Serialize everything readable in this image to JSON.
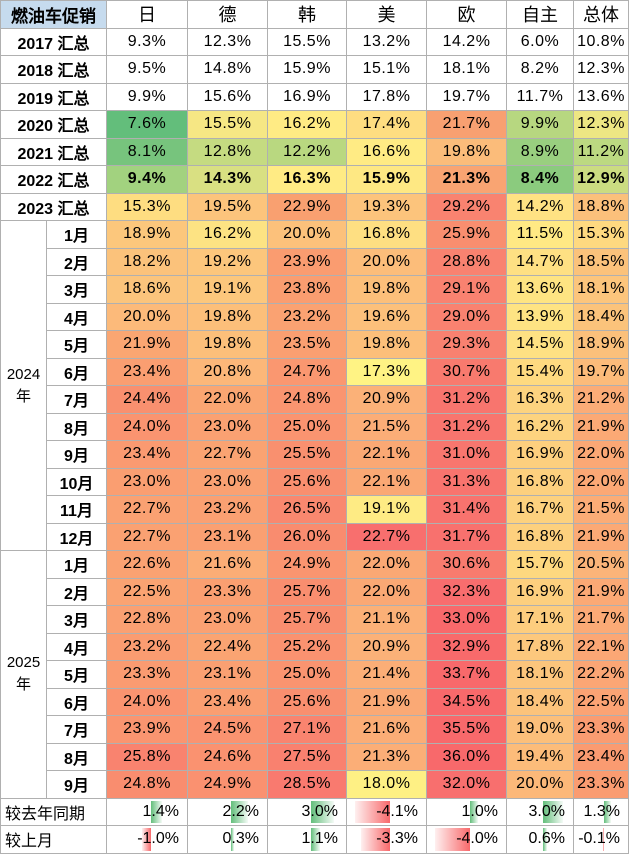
{
  "header": {
    "corner": "燃油车促销",
    "columns": [
      "日",
      "德",
      "韩",
      "美",
      "欧",
      "自主",
      "总体"
    ]
  },
  "annual_rows": [
    {
      "label": "2017 汇总",
      "values": [
        "9.3%",
        "12.3%",
        "15.5%",
        "13.2%",
        "14.2%",
        "6.0%",
        "10.8%"
      ],
      "colors": [
        "#ffffff",
        "#ffffff",
        "#ffffff",
        "#ffffff",
        "#ffffff",
        "#ffffff",
        "#ffffff"
      ],
      "bold": false
    },
    {
      "label": "2018 汇总",
      "values": [
        "9.5%",
        "14.8%",
        "15.9%",
        "15.1%",
        "18.1%",
        "8.2%",
        "12.3%"
      ],
      "colors": [
        "#ffffff",
        "#ffffff",
        "#ffffff",
        "#ffffff",
        "#ffffff",
        "#ffffff",
        "#ffffff"
      ],
      "bold": false
    },
    {
      "label": "2019 汇总",
      "values": [
        "9.9%",
        "15.6%",
        "16.9%",
        "17.8%",
        "19.7%",
        "11.7%",
        "13.6%"
      ],
      "colors": [
        "#ffffff",
        "#ffffff",
        "#ffffff",
        "#ffffff",
        "#ffffff",
        "#ffffff",
        "#ffffff"
      ],
      "bold": false
    },
    {
      "label": "2020 汇总",
      "values": [
        "7.6%",
        "15.5%",
        "16.2%",
        "17.4%",
        "21.7%",
        "9.9%",
        "12.3%"
      ],
      "colors": [
        "#63be7b",
        "#f6e784",
        "#ffeb84",
        "#fedd81",
        "#f8a071",
        "#b7d780",
        "#ede683"
      ],
      "bold": false
    },
    {
      "label": "2021 汇总",
      "values": [
        "8.1%",
        "12.8%",
        "12.2%",
        "16.6%",
        "19.8%",
        "8.9%",
        "11.2%"
      ],
      "colors": [
        "#77c47d",
        "#c5db81",
        "#b9d880",
        "#ffeb84",
        "#fbbc7a",
        "#99cf7f",
        "#bcd981"
      ],
      "bold": false
    },
    {
      "label": "2022 汇总",
      "values": [
        "9.4%",
        "14.3%",
        "16.3%",
        "15.9%",
        "21.3%",
        "8.4%",
        "12.9%"
      ],
      "colors": [
        "#a2d27f",
        "#d9e082",
        "#ffeb84",
        "#fee883",
        "#f9a472",
        "#8bcb7e",
        "#cbdc81"
      ],
      "bold": true
    },
    {
      "label": "2023 汇总",
      "values": [
        "15.3%",
        "19.5%",
        "22.9%",
        "19.3%",
        "29.2%",
        "14.2%",
        "18.8%"
      ],
      "colors": [
        "#fedd81",
        "#fcc47c",
        "#f9a070",
        "#fcc47c",
        "#f98370",
        "#ffe283",
        "#fbc07b"
      ],
      "bold": false
    }
  ],
  "years": [
    {
      "label": "2024 年",
      "rows": [
        {
          "label": "1月",
          "values": [
            "18.9%",
            "16.2%",
            "20.0%",
            "16.8%",
            "25.9%",
            "11.5%",
            "15.3%"
          ],
          "colors": [
            "#fcc77c",
            "#fde383",
            "#fcc17b",
            "#fedf82",
            "#f98e6f",
            "#ffe984",
            "#fed980"
          ]
        },
        {
          "label": "2月",
          "values": [
            "18.2%",
            "19.2%",
            "23.9%",
            "20.0%",
            "28.8%",
            "14.7%",
            "18.5%"
          ],
          "colors": [
            "#fbc27b",
            "#fcc67c",
            "#fa9c70",
            "#fcbd7a",
            "#f98270",
            "#fee083",
            "#fbc27b"
          ]
        },
        {
          "label": "3月",
          "values": [
            "18.6%",
            "19.1%",
            "23.8%",
            "19.8%",
            "29.1%",
            "13.6%",
            "18.1%"
          ],
          "colors": [
            "#fbc47c",
            "#fcc77c",
            "#fa9d70",
            "#fcbf7a",
            "#f98270",
            "#fee482",
            "#fcc57c"
          ]
        },
        {
          "label": "4月",
          "values": [
            "20.0%",
            "19.8%",
            "23.2%",
            "19.6%",
            "29.0%",
            "13.9%",
            "18.4%"
          ],
          "colors": [
            "#fcba7a",
            "#fcbf7a",
            "#faa272",
            "#fcc07b",
            "#f98270",
            "#fee383",
            "#fbc37b"
          ]
        },
        {
          "label": "5月",
          "values": [
            "21.9%",
            "19.8%",
            "23.5%",
            "19.8%",
            "29.3%",
            "14.5%",
            "18.9%"
          ],
          "colors": [
            "#faa672",
            "#fcbf7a",
            "#fa9f71",
            "#fcbf7a",
            "#f88170",
            "#fee183",
            "#fbc07b"
          ]
        },
        {
          "label": "6月",
          "values": [
            "23.4%",
            "20.8%",
            "24.7%",
            "17.3%",
            "30.7%",
            "15.4%",
            "19.7%"
          ],
          "colors": [
            "#fa9e71",
            "#fcb779",
            "#fa9770",
            "#fff384",
            "#f87a6e",
            "#feda80",
            "#fcbb7a"
          ]
        },
        {
          "label": "7月",
          "values": [
            "24.4%",
            "22.0%",
            "24.8%",
            "20.9%",
            "31.2%",
            "16.3%",
            "21.2%"
          ],
          "colors": [
            "#f9906f",
            "#faa672",
            "#fa9570",
            "#fbb178",
            "#f8756e",
            "#fdd37f",
            "#fbac77"
          ]
        },
        {
          "label": "8月",
          "values": [
            "24.0%",
            "23.0%",
            "25.0%",
            "21.5%",
            "31.2%",
            "16.2%",
            "21.9%"
          ],
          "colors": [
            "#fa9470",
            "#faa172",
            "#fa9470",
            "#fbad77",
            "#f8756e",
            "#fdd37f",
            "#fba975"
          ]
        },
        {
          "label": "9月",
          "values": [
            "23.4%",
            "22.7%",
            "25.5%",
            "22.1%",
            "31.0%",
            "16.9%",
            "22.0%"
          ],
          "colors": [
            "#fa9a71",
            "#faa372",
            "#f9906f",
            "#faa874",
            "#f8766e",
            "#fdcf7e",
            "#fba875"
          ]
        },
        {
          "label": "10月",
          "values": [
            "23.0%",
            "23.0%",
            "25.6%",
            "22.1%",
            "31.3%",
            "16.8%",
            "22.0%"
          ],
          "colors": [
            "#fa9e71",
            "#faa172",
            "#f98f6f",
            "#faa874",
            "#f8746e",
            "#fdd07e",
            "#fba875"
          ]
        },
        {
          "label": "11月",
          "values": [
            "22.7%",
            "23.2%",
            "26.5%",
            "19.1%",
            "31.4%",
            "16.7%",
            "21.5%"
          ],
          "colors": [
            "#faa172",
            "#faa072",
            "#f9886f",
            "#feeb84",
            "#f8736e",
            "#fdd17e",
            "#fbac76"
          ]
        },
        {
          "label": "12月",
          "values": [
            "22.7%",
            "23.1%",
            "26.0%",
            "22.7%",
            "31.7%",
            "16.8%",
            "21.9%"
          ],
          "colors": [
            "#faa172",
            "#faa072",
            "#f98c6f",
            "#f86f6e",
            "#f8716e",
            "#fdd07e",
            "#fba975"
          ]
        }
      ]
    },
    {
      "label": "2025 年",
      "rows": [
        {
          "label": "1月",
          "values": [
            "22.6%",
            "21.6%",
            "24.9%",
            "22.0%",
            "30.6%",
            "15.7%",
            "20.5%"
          ],
          "colors": [
            "#faa272",
            "#fbad76",
            "#fa9570",
            "#faa874",
            "#f87b6e",
            "#fed87f",
            "#fbb479"
          ]
        },
        {
          "label": "2月",
          "values": [
            "22.5%",
            "23.3%",
            "25.7%",
            "22.0%",
            "32.3%",
            "16.9%",
            "21.9%"
          ],
          "colors": [
            "#faa372",
            "#fa9f71",
            "#f98e6f",
            "#faa874",
            "#f86d6e",
            "#fdcf7e",
            "#fba975"
          ]
        },
        {
          "label": "3月",
          "values": [
            "22.8%",
            "23.0%",
            "25.7%",
            "21.1%",
            "33.0%",
            "17.1%",
            "21.7%"
          ],
          "colors": [
            "#faa072",
            "#faa172",
            "#f98e6f",
            "#fbb077",
            "#f8696b",
            "#fdcd7e",
            "#fbaa76"
          ]
        },
        {
          "label": "4月",
          "values": [
            "23.2%",
            "22.4%",
            "25.2%",
            "20.9%",
            "32.9%",
            "17.8%",
            "22.1%"
          ],
          "colors": [
            "#fa9c71",
            "#faa472",
            "#fa9270",
            "#fbb178",
            "#f86a6b",
            "#fcc87d",
            "#fba775"
          ]
        },
        {
          "label": "5月",
          "values": [
            "23.3%",
            "23.1%",
            "25.0%",
            "21.4%",
            "33.7%",
            "18.1%",
            "22.2%"
          ],
          "colors": [
            "#fa9b71",
            "#faa072",
            "#fa9470",
            "#fbae77",
            "#f8696b",
            "#fcc57c",
            "#fba675"
          ]
        },
        {
          "label": "6月",
          "values": [
            "24.0%",
            "23.4%",
            "25.6%",
            "21.9%",
            "34.5%",
            "18.4%",
            "22.5%"
          ],
          "colors": [
            "#fa9470",
            "#fa9e71",
            "#f98f6f",
            "#faa975",
            "#f8696b",
            "#fcc37b",
            "#fba374"
          ]
        },
        {
          "label": "7月",
          "values": [
            "23.9%",
            "24.5%",
            "27.1%",
            "21.6%",
            "35.5%",
            "19.0%",
            "23.3%"
          ],
          "colors": [
            "#fa9570",
            "#fa9370",
            "#f9846f",
            "#fbad76",
            "#f8696b",
            "#fcbf7a",
            "#fa9c71"
          ]
        },
        {
          "label": "8月",
          "values": [
            "25.8%",
            "24.6%",
            "27.5%",
            "21.3%",
            "36.0%",
            "19.4%",
            "23.4%"
          ],
          "colors": [
            "#f9836f",
            "#fa9270",
            "#f9816f",
            "#fbae77",
            "#f8696b",
            "#fcbc7a",
            "#fa9b71"
          ]
        },
        {
          "label": "9月",
          "values": [
            "24.8%",
            "24.9%",
            "28.5%",
            "18.0%",
            "32.0%",
            "20.0%",
            "23.3%"
          ],
          "colors": [
            "#f98d6f",
            "#fa9170",
            "#f97a6f",
            "#fef084",
            "#f86f6e",
            "#fcb879",
            "#fa9c71"
          ]
        }
      ]
    }
  ],
  "comparison_rows": [
    {
      "label": "较去年同期",
      "values": [
        "1.4%",
        "2.2%",
        "3.0%",
        "-4.1%",
        "1.0%",
        "3.0%",
        "1.3%"
      ],
      "bar_fraction": [
        0.35,
        0.53,
        0.73,
        1.0,
        0.25,
        0.73,
        0.32
      ],
      "positive": [
        true,
        true,
        true,
        false,
        true,
        true,
        true
      ]
    },
    {
      "label": "较上月",
      "values": [
        "-1.0%",
        "0.3%",
        "1.1%",
        "-3.3%",
        "-4.0%",
        "0.6%",
        "-0.1%"
      ],
      "bar_fraction": [
        0.25,
        0.08,
        0.28,
        0.82,
        1.0,
        0.15,
        0.03
      ],
      "positive": [
        false,
        true,
        true,
        false,
        false,
        true,
        false
      ]
    }
  ]
}
